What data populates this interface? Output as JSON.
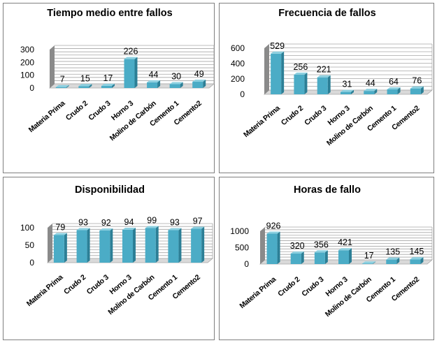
{
  "colors": {
    "bar_front": "#4bacc6",
    "bar_side": "#2c7f96",
    "bar_top": "#8dd0e0",
    "axis_wall": "#8a8a8a",
    "grid": "#a6a6a6",
    "border": "#7f7f7f"
  },
  "chart_data": [
    {
      "type": "bar",
      "title": "Tiempo medio entre fallos",
      "categories": [
        "Materia Prima",
        "Crudo 2",
        "Crudo 3",
        "Horno 3",
        "Molino de Carbón",
        "Cemento 1",
        "Cemento2"
      ],
      "values": [
        7,
        15,
        17,
        226,
        44,
        30,
        49
      ],
      "ylim": [
        0,
        300
      ],
      "yticks": [
        0,
        100,
        200,
        300
      ],
      "grid": true,
      "legend": "none"
    },
    {
      "type": "bar",
      "title": "Frecuencia de fallos",
      "categories": [
        "Materia Prima",
        "Crudo 2",
        "Crudo 3",
        "Horno 3",
        "Molino de Carbón",
        "Cemento 1",
        "Cemento2"
      ],
      "values": [
        529,
        256,
        221,
        31,
        44,
        64,
        76
      ],
      "ylim": [
        0,
        600
      ],
      "yticks": [
        0,
        200,
        400,
        600
      ],
      "grid": true,
      "legend": "none"
    },
    {
      "type": "bar",
      "title": "Disponibilidad",
      "categories": [
        "Materia Prima",
        "Crudo 2",
        "Crudo 3",
        "Horno 3",
        "Molino de Carbón",
        "Cemento 1",
        "Cemento2"
      ],
      "values": [
        79,
        93,
        92,
        94,
        99,
        93,
        97
      ],
      "ylim": [
        0,
        100
      ],
      "yticks": [
        0,
        50,
        100
      ],
      "grid": true,
      "legend": "none"
    },
    {
      "type": "bar",
      "title": "Horas de fallo",
      "categories": [
        "Materia Prima",
        "Crudo 2",
        "Crudo 3",
        "Horno 3",
        "Molino de Carbón",
        "Cemento 1",
        "Cemento2"
      ],
      "values": [
        926,
        320,
        356,
        421,
        17,
        135,
        145
      ],
      "ylim": [
        0,
        1000
      ],
      "yticks": [
        0,
        500,
        1000
      ],
      "grid": true,
      "legend": "none"
    }
  ]
}
